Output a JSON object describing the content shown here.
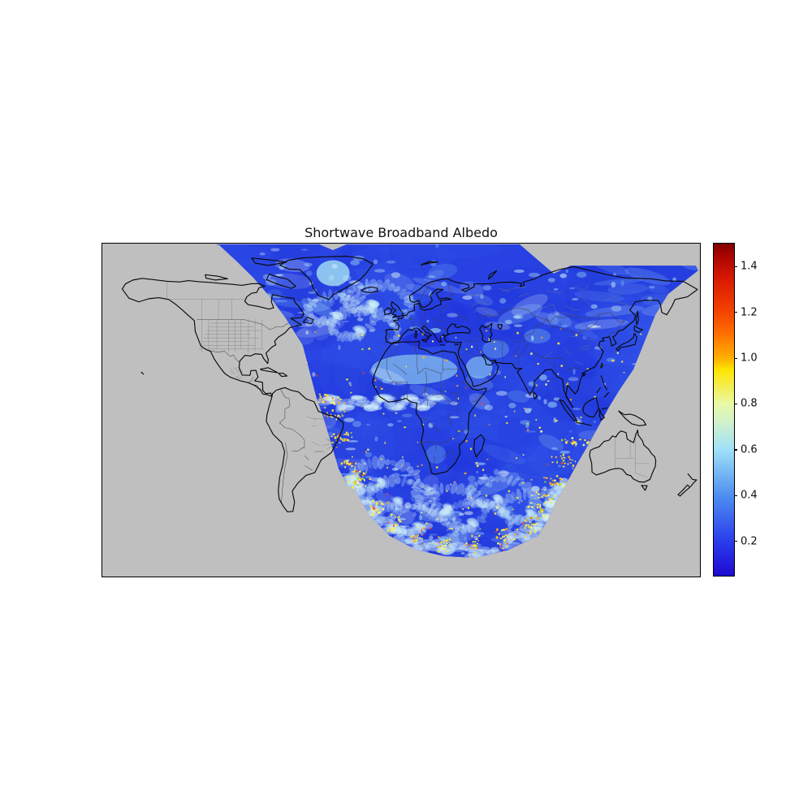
{
  "figure": {
    "title": "Shortwave Broadband Albedo",
    "background_color": "#ffffff"
  },
  "map": {
    "background_color": "#bfbfbf",
    "frame_color": "#000000",
    "coastline_color": "#0a0a0a",
    "country_border_color": "#3f3f3f",
    "admin_border_color": "#7a7a7a"
  },
  "colorbar": {
    "ticks": [
      "0.2",
      "0.4",
      "0.6",
      "0.8",
      "1.0",
      "1.2",
      "1.4"
    ],
    "vmin": 0.05,
    "vmax": 1.5
  },
  "chart_data": {
    "type": "heatmap",
    "title": "Shortwave Broadband Albedo",
    "projection": "equirectangular",
    "lon_range": [
      -180,
      180
    ],
    "lat_range": [
      -90,
      90
    ],
    "value_range": [
      0.05,
      1.5
    ],
    "colorbar_ticks": [
      0.2,
      0.4,
      0.6,
      0.8,
      1.0,
      1.2,
      1.4
    ],
    "colormap_stops": [
      {
        "value": 0.05,
        "color": "#1e0ad2"
      },
      {
        "value": 0.2,
        "color": "#2a3cec"
      },
      {
        "value": 0.4,
        "color": "#4e8ff0"
      },
      {
        "value": 0.6,
        "color": "#9fe0f8"
      },
      {
        "value": 0.7,
        "color": "#c9efd4"
      },
      {
        "value": 0.8,
        "color": "#e9f9a6"
      },
      {
        "value": 0.95,
        "color": "#ffe400"
      },
      {
        "value": 1.0,
        "color": "#ffae00"
      },
      {
        "value": 1.1,
        "color": "#ff7300"
      },
      {
        "value": 1.2,
        "color": "#f44400"
      },
      {
        "value": 1.35,
        "color": "#d81800"
      },
      {
        "value": 1.45,
        "color": "#a80400"
      },
      {
        "value": 1.5,
        "color": "#7e0000"
      }
    ],
    "no_data_color": "#bfbfbf",
    "ocean_base_color": "#2741e2",
    "swath_outline_lonlat": [
      [
        -112.0,
        89.6
      ],
      [
        -49.4,
        89.6
      ],
      [
        -41.1,
        86.5
      ],
      [
        -32.8,
        89.6
      ],
      [
        71.4,
        89.6
      ],
      [
        91.9,
        73.8
      ],
      [
        102.2,
        78.1
      ],
      [
        177.5,
        78.1
      ],
      [
        179.0,
        75.5
      ],
      [
        160.9,
        62.8
      ],
      [
        153.1,
        51.4
      ],
      [
        139.9,
        22.0
      ],
      [
        131.6,
        11.0
      ],
      [
        126.2,
        3.1
      ],
      [
        120.3,
        -6.5
      ],
      [
        113.0,
        -18.4
      ],
      [
        105.6,
        -29.8
      ],
      [
        98.3,
        -41.7
      ],
      [
        92.4,
        -50.5
      ],
      [
        88.5,
        -59.3
      ],
      [
        82.6,
        -68.0
      ],
      [
        65.0,
        -75.5
      ],
      [
        45.4,
        -79.9
      ],
      [
        25.9,
        -79.0
      ],
      [
        9.2,
        -75.5
      ],
      [
        -7.0,
        -68.0
      ],
      [
        -18.2,
        -57.9
      ],
      [
        -28.0,
        -43.0
      ],
      [
        -32.8,
        -40.3
      ],
      [
        -37.7,
        -31.6
      ],
      [
        -42.6,
        -16.6
      ],
      [
        -47.5,
        -2.2
      ],
      [
        -51.0,
        6.6
      ],
      [
        -59.3,
        35.1
      ],
      [
        -69.5,
        49.6
      ],
      [
        -79.3,
        61.5
      ],
      [
        -89.1,
        71.6
      ],
      [
        -98.9,
        80.3
      ],
      [
        -109.6,
        89.2
      ]
    ],
    "edge_artifacts": {
      "color": "#6ca8f0",
      "dashes": [
        {
          "lon0": -43.5,
          "lon1": -31.3,
          "lat": -34.7
        },
        {
          "lon0": -42.1,
          "lon1": -33.3,
          "lat": -36.9
        }
      ]
    },
    "bright_surface_regions": [
      {
        "name": "Sahara",
        "lon": 8,
        "lat": 22,
        "approx_albedo": 0.38
      },
      {
        "name": "Arabia",
        "lon": 47,
        "lat": 23,
        "approx_albedo": 0.36
      },
      {
        "name": "Greenland ice",
        "lon": -41,
        "lat": 74,
        "approx_albedo": 0.6
      }
    ]
  }
}
